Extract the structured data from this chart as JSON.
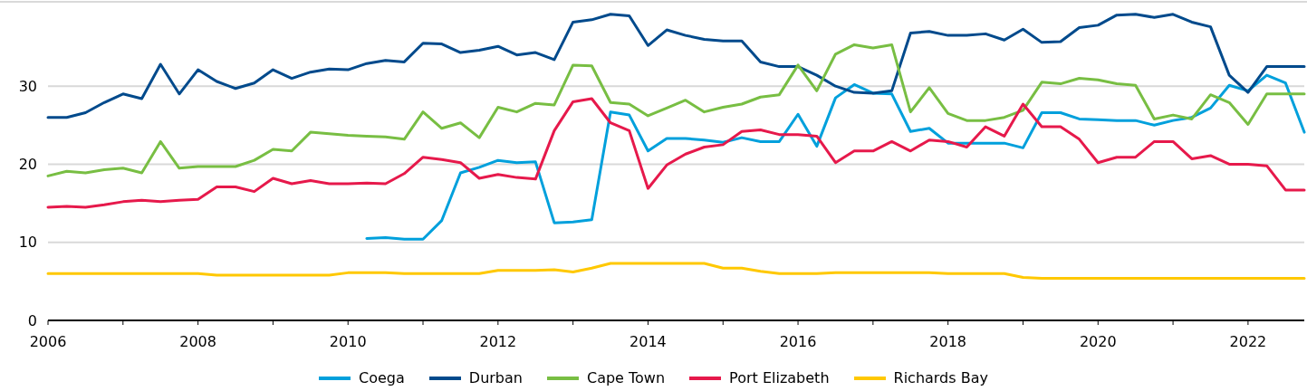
{
  "chart_data": {
    "type": "line",
    "x": [
      2006,
      2006.25,
      2006.5,
      2006.75,
      2007,
      2007.25,
      2007.5,
      2007.75,
      2008,
      2008.25,
      2008.5,
      2008.75,
      2009,
      2009.25,
      2009.5,
      2009.75,
      2010,
      2010.25,
      2010.5,
      2010.75,
      2011,
      2011.25,
      2011.5,
      2011.75,
      2012,
      2012.25,
      2012.5,
      2012.75,
      2013,
      2013.25,
      2013.5,
      2013.75,
      2014,
      2014.25,
      2014.5,
      2014.75,
      2015,
      2015.25,
      2015.5,
      2015.75,
      2016,
      2016.25,
      2016.5,
      2016.75,
      2017,
      2017.25,
      2017.5,
      2017.75,
      2018,
      2018.25,
      2018.5,
      2018.75,
      2019,
      2019.25,
      2019.5,
      2019.75,
      2020,
      2020.25,
      2020.5,
      2020.75,
      2021,
      2021.25,
      2021.5,
      2021.75,
      2022,
      2022.25,
      2022.5,
      2022.75
    ],
    "series": [
      {
        "name": "Coega",
        "color": "#00a0dc",
        "values": [
          null,
          null,
          null,
          null,
          null,
          null,
          null,
          null,
          null,
          null,
          null,
          null,
          null,
          null,
          null,
          null,
          null,
          10.5,
          10.6,
          10.4,
          10.4,
          12.8,
          18.9,
          19.6,
          20.5,
          20.2,
          20.3,
          12.5,
          12.6,
          12.9,
          26.7,
          26.3,
          21.7,
          23.3,
          23.3,
          23.1,
          22.8,
          23.4,
          22.9,
          22.9,
          26.4,
          22.3,
          28.5,
          30.2,
          29.1,
          29.0,
          24.2,
          24.6,
          22.7,
          22.7,
          22.7,
          22.7,
          22.1,
          26.6,
          26.6,
          25.8,
          25.7,
          25.6,
          25.6,
          25.0,
          25.6,
          26.0,
          27.2,
          30.1,
          29.4,
          31.4,
          30.4,
          24.1
        ]
      },
      {
        "name": "Durban",
        "color": "#004a8c",
        "values": [
          26.0,
          26.0,
          26.6,
          27.9,
          29.0,
          28.4,
          32.8,
          29.0,
          32.1,
          30.6,
          29.7,
          30.4,
          32.1,
          31.0,
          31.8,
          32.2,
          32.1,
          32.9,
          33.3,
          33.1,
          35.5,
          35.4,
          34.3,
          34.6,
          35.1,
          34.0,
          34.3,
          33.4,
          38.2,
          38.5,
          39.2,
          39.0,
          35.2,
          37.2,
          36.5,
          36.0,
          35.8,
          35.8,
          33.1,
          32.5,
          32.5,
          31.4,
          30.0,
          29.2,
          29.1,
          29.4,
          36.8,
          37.0,
          36.5,
          36.5,
          36.7,
          35.9,
          37.3,
          35.6,
          35.7,
          37.5,
          37.8,
          39.1,
          39.2,
          38.8,
          39.2,
          38.2,
          37.6,
          31.4,
          29.2,
          32.5,
          32.5,
          32.5
        ]
      },
      {
        "name": "Cape Town",
        "color": "#78be43",
        "values": [
          18.5,
          19.1,
          18.9,
          19.3,
          19.5,
          18.9,
          22.9,
          19.5,
          19.7,
          19.7,
          19.7,
          20.5,
          21.9,
          21.7,
          24.1,
          23.9,
          23.7,
          23.6,
          23.5,
          23.2,
          26.7,
          24.6,
          25.3,
          23.4,
          27.3,
          26.7,
          27.8,
          27.6,
          32.7,
          32.6,
          27.9,
          27.7,
          26.2,
          27.2,
          28.2,
          26.7,
          27.3,
          27.7,
          28.6,
          28.9,
          32.7,
          29.4,
          34.1,
          35.3,
          34.9,
          35.3,
          26.7,
          29.8,
          26.5,
          25.6,
          25.6,
          26.0,
          26.9,
          30.5,
          30.3,
          31.0,
          30.8,
          30.3,
          30.1,
          25.8,
          26.3,
          25.8,
          28.9,
          27.9,
          25.1,
          29.0,
          29.0,
          29.0
        ]
      },
      {
        "name": "Port Elizabeth",
        "color": "#e6194b",
        "values": [
          14.5,
          14.6,
          14.5,
          14.8,
          15.2,
          15.4,
          15.2,
          15.4,
          15.5,
          17.1,
          17.1,
          16.5,
          18.2,
          17.5,
          17.9,
          17.5,
          17.5,
          17.6,
          17.5,
          18.8,
          20.9,
          20.6,
          20.2,
          18.2,
          18.7,
          18.3,
          18.1,
          24.3,
          28.0,
          28.4,
          25.3,
          24.3,
          16.9,
          19.9,
          21.3,
          22.2,
          22.5,
          24.2,
          24.4,
          23.8,
          23.8,
          23.6,
          20.2,
          21.7,
          21.7,
          22.9,
          21.7,
          23.1,
          22.9,
          22.2,
          24.8,
          23.6,
          27.7,
          24.8,
          24.8,
          23.2,
          20.2,
          20.9,
          20.9,
          22.9,
          22.9,
          20.7,
          21.1,
          20.0,
          20.0,
          19.8,
          16.7,
          16.7
        ]
      },
      {
        "name": "Richards Bay",
        "color": "#ffc800",
        "values": [
          6.0,
          6.0,
          6.0,
          6.0,
          6.0,
          6.0,
          6.0,
          6.0,
          6.0,
          5.8,
          5.8,
          5.8,
          5.8,
          5.8,
          5.8,
          5.8,
          6.1,
          6.1,
          6.1,
          6.0,
          6.0,
          6.0,
          6.0,
          6.0,
          6.4,
          6.4,
          6.4,
          6.5,
          6.2,
          6.7,
          7.3,
          7.3,
          7.3,
          7.3,
          7.3,
          7.3,
          6.7,
          6.7,
          6.3,
          6.0,
          6.0,
          6.0,
          6.1,
          6.1,
          6.1,
          6.1,
          6.1,
          6.1,
          6.0,
          6.0,
          6.0,
          6.0,
          5.5,
          5.4,
          5.4,
          5.4,
          5.4,
          5.4,
          5.4,
          5.4,
          5.4,
          5.4,
          5.4,
          5.4,
          5.4,
          5.4,
          5.4,
          5.4
        ]
      }
    ],
    "xlim": [
      2006,
      2022.75
    ],
    "xticks": [
      2006,
      {
        "value": 2007,
        "label": null
      },
      2008,
      {
        "value": 2009,
        "label": null
      },
      2010,
      {
        "value": 2011,
        "label": null
      },
      2012,
      {
        "value": 2013,
        "label": null
      },
      2014,
      {
        "value": 2015,
        "label": null
      },
      2016,
      {
        "value": 2017,
        "label": null
      },
      2018,
      {
        "value": 2019,
        "label": null
      },
      2020,
      {
        "value": 2021,
        "label": null
      },
      2022
    ],
    "ylim": [
      0,
      40.8
    ],
    "yticks": [
      0,
      10,
      20,
      30
    ],
    "grid": "y",
    "legend": "bottom"
  }
}
